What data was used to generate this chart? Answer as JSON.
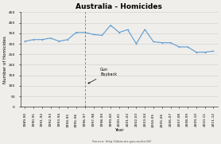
{
  "title": "Australia - Homicides",
  "xlabel": "Year",
  "ylabel": "Number of Homicides",
  "source": "Source: http://data.aic.gov.au/aic16/",
  "ylim": [
    0,
    450
  ],
  "yticks": [
    0,
    50,
    100,
    150,
    200,
    250,
    300,
    350,
    400,
    450
  ],
  "annotation_text": "Gun\nBuyback",
  "years": [
    "1989-90",
    "1990-91",
    "1991-92",
    "1992-93",
    "1993-94",
    "1994-95",
    "1995-96",
    "1996-97",
    "1997-98",
    "1998-99",
    "1999-00",
    "2000-01",
    "2001-02",
    "2002-03",
    "2003-04",
    "2004-05",
    "2005-06",
    "2006-07",
    "2007-08",
    "2008-09",
    "2009-10",
    "2010-11",
    "2011-12"
  ],
  "values": [
    312,
    320,
    320,
    327,
    312,
    320,
    354,
    354,
    344,
    340,
    388,
    354,
    367,
    300,
    368,
    310,
    305,
    305,
    285,
    285,
    260,
    260,
    265
  ],
  "gun_idx": 7,
  "line_color": "#5b9bd5",
  "line_width": 0.8,
  "marker_size": 1.2,
  "background_color": "#f0eeea",
  "grid_color": "#cccccc",
  "dashed_line_color": "#888888",
  "title_fontsize": 6.5,
  "label_fontsize": 4,
  "tick_fontsize": 3.2,
  "source_fontsize": 3,
  "annot_fontsize": 3.5
}
